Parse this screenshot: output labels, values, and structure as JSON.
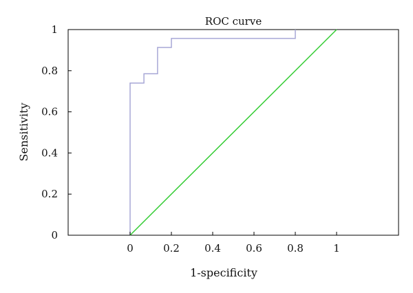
{
  "chart_data": {
    "type": "line",
    "title": "ROC curve",
    "xlabel": "1-specificity",
    "ylabel": "Sensitivity",
    "xlim": [
      -0.3,
      1.3
    ],
    "ylim": [
      0,
      1
    ],
    "x_ticks": [
      0,
      0.2,
      0.4,
      0.6,
      0.8,
      1
    ],
    "x_tick_labels": [
      "0",
      "0.2",
      "0.4",
      "0.6",
      "0.8",
      "1"
    ],
    "y_ticks": [
      0,
      0.2,
      0.4,
      0.6,
      0.8,
      1
    ],
    "y_tick_labels": [
      "0",
      "0.2",
      "0.4",
      "0.6",
      "0.8",
      "1"
    ],
    "grid": false,
    "series": [
      {
        "color": "#a7a7d6",
        "x": [
          0,
          0,
          0.067,
          0.067,
          0.133,
          0.133,
          0.2,
          0.2,
          0.8,
          0.8
        ],
        "y": [
          0,
          0.74,
          0.74,
          0.785,
          0.785,
          0.913,
          0.913,
          0.957,
          0.957,
          1.0
        ]
      },
      {
        "color": "#33cc33",
        "x": [
          0,
          1
        ],
        "y": [
          0,
          1
        ]
      }
    ]
  }
}
